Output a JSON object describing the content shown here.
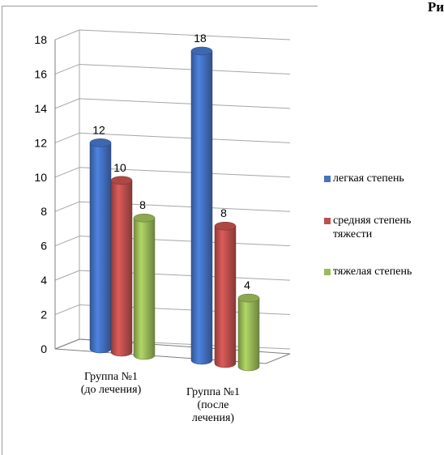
{
  "corner_text": "Ри",
  "chart_data": {
    "type": "bar",
    "style": "3d-cylinder",
    "title": "",
    "xlabel": "",
    "ylabel": "",
    "ylim": [
      0,
      18
    ],
    "yticks": [
      "0",
      "2",
      "4",
      "6",
      "8",
      "10",
      "12",
      "14",
      "16",
      "18"
    ],
    "grid": true,
    "legend_position": "right",
    "categories": [
      [
        "Группа №1",
        "(до лечения)"
      ],
      [
        "Группа №1",
        "(после",
        "лечения)"
      ]
    ],
    "series": [
      {
        "name": "легкая степень",
        "values": [
          12,
          18
        ],
        "color": "#4472C4"
      },
      {
        "name": [
          "средняя степень",
          "тяжести"
        ],
        "values": [
          10,
          8
        ],
        "color": "#C0504D"
      },
      {
        "name": "тяжелая степень",
        "values": [
          8,
          4
        ],
        "color": "#9BBB59"
      }
    ]
  }
}
